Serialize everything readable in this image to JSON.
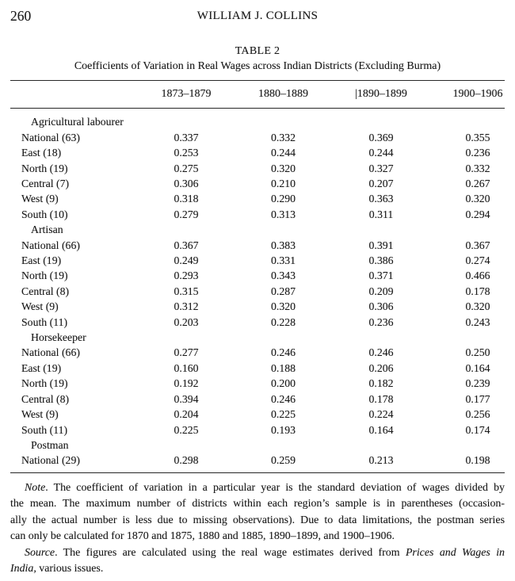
{
  "page": {
    "number": "260",
    "running_head": "WILLIAM J. COLLINS"
  },
  "table": {
    "label": "TABLE 2",
    "caption": "Coefficients of Variation in Real Wages across Indian Districts (Excluding Burma)",
    "columns": [
      "1873–1879",
      "1880–1889",
      "|1890–1899",
      "1900–1906"
    ],
    "groups": [
      {
        "label": "Agricultural labourer",
        "rows": [
          {
            "label": "National (63)",
            "values": [
              "0.337",
              "0.332",
              "0.369",
              "0.355"
            ]
          },
          {
            "label": "East (18)",
            "values": [
              "0.253",
              "0.244",
              "0.244",
              "0.236"
            ]
          },
          {
            "label": "North (19)",
            "values": [
              "0.275",
              "0.320",
              "0.327",
              "0.332"
            ]
          },
          {
            "label": "Central (7)",
            "values": [
              "0.306",
              "0.210",
              "0.207",
              "0.267"
            ]
          },
          {
            "label": "West (9)",
            "values": [
              "0.318",
              "0.290",
              "0.363",
              "0.320"
            ]
          },
          {
            "label": "South (10)",
            "values": [
              "0.279",
              "0.313",
              "0.311",
              "0.294"
            ]
          }
        ]
      },
      {
        "label": "Artisan",
        "rows": [
          {
            "label": "National (66)",
            "values": [
              "0.367",
              "0.383",
              "0.391",
              "0.367"
            ]
          },
          {
            "label": "East (19)",
            "values": [
              "0.249",
              "0.331",
              "0.386",
              "0.274"
            ]
          },
          {
            "label": "North (19)",
            "values": [
              "0.293",
              "0.343",
              "0.371",
              "0.466"
            ]
          },
          {
            "label": "Central (8)",
            "values": [
              "0.315",
              "0.287",
              "0.209",
              "0.178"
            ]
          },
          {
            "label": "West (9)",
            "values": [
              "0.312",
              "0.320",
              "0.306",
              "0.320"
            ]
          },
          {
            "label": "South (11)",
            "values": [
              "0.203",
              "0.228",
              "0.236",
              "0.243"
            ]
          }
        ]
      },
      {
        "label": "Horsekeeper",
        "rows": [
          {
            "label": "National (66)",
            "values": [
              "0.277",
              "0.246",
              "0.246",
              "0.250"
            ]
          },
          {
            "label": "East (19)",
            "values": [
              "0.160",
              "0.188",
              "0.206",
              "0.164"
            ]
          },
          {
            "label": "North (19)",
            "values": [
              "0.192",
              "0.200",
              "0.182",
              "0.239"
            ]
          },
          {
            "label": "Central (8)",
            "values": [
              "0.394",
              "0.246",
              "0.178",
              "0.177"
            ]
          },
          {
            "label": "West (9)",
            "values": [
              "0.204",
              "0.225",
              "0.224",
              "0.256"
            ]
          },
          {
            "label": "South (11)",
            "values": [
              "0.225",
              "0.193",
              "0.164",
              "0.174"
            ]
          }
        ]
      },
      {
        "label": "Postman",
        "rows": [
          {
            "label": "National (29)",
            "values": [
              "0.298",
              "0.259",
              "0.213",
              "0.198"
            ]
          }
        ]
      }
    ]
  },
  "notes": {
    "note": {
      "lines": [
        {
          "indent": true,
          "justify": true,
          "segments": [
            {
              "t": "Note",
              "i": true
            },
            {
              "t": ". The coefficient of variation in a particular year is the standard deviation of wages divided by",
              "i": false
            }
          ]
        },
        {
          "indent": false,
          "justify": true,
          "segments": [
            {
              "t": "the mean. The maximum number of districts within each region’s sample is in parentheses (occasion-",
              "i": false
            }
          ]
        },
        {
          "indent": false,
          "justify": true,
          "segments": [
            {
              "t": "ally the actual number is less due to missing observations). Due to data limitations, the postman series",
              "i": false
            }
          ]
        },
        {
          "indent": false,
          "justify": false,
          "segments": [
            {
              "t": "can only be calculated for 1870 and 1875, 1880 and 1885, 1890–1899, and 1900–1906.",
              "i": false
            }
          ]
        }
      ]
    },
    "source": {
      "lines": [
        {
          "indent": true,
          "justify": true,
          "segments": [
            {
              "t": "Source",
              "i": true
            },
            {
              "t": ". The figures are calculated using the real wage estimates derived from ",
              "i": false
            },
            {
              "t": "Prices and Wages in",
              "i": true
            }
          ]
        },
        {
          "indent": false,
          "justify": false,
          "segments": [
            {
              "t": "India,",
              "i": true
            },
            {
              "t": " various issues.",
              "i": false
            }
          ]
        }
      ]
    }
  }
}
